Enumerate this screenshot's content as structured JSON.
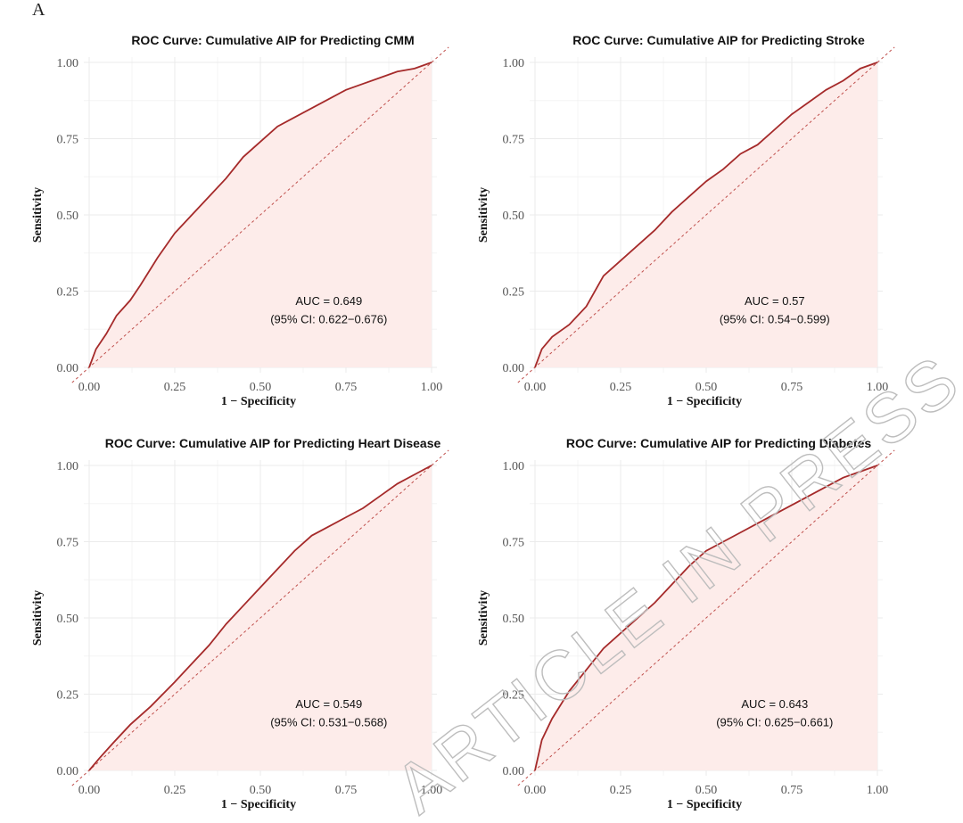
{
  "figure_label": "A",
  "watermark": "ARTICLE IN PRESS",
  "chart_data": [
    {
      "type": "line",
      "title": "ROC Curve: Cumulative AIP for Predicting CMM",
      "xlabel": "1 − Specificity",
      "ylabel": "Sensitivity",
      "xlim": [
        0,
        1
      ],
      "ylim": [
        0,
        1
      ],
      "xticks": [
        "0.00",
        "0.25",
        "0.50",
        "0.75",
        "1.00"
      ],
      "yticks": [
        "0.00",
        "0.25",
        "0.50",
        "0.75",
        "1.00"
      ],
      "grid": true,
      "auc_text": "AUC = 0.649",
      "ci_text": "(95% CI: 0.622−0.676)",
      "x": [
        0,
        0.02,
        0.05,
        0.08,
        0.12,
        0.15,
        0.2,
        0.25,
        0.3,
        0.35,
        0.4,
        0.45,
        0.5,
        0.55,
        0.6,
        0.65,
        0.7,
        0.75,
        0.8,
        0.85,
        0.9,
        0.95,
        1.0
      ],
      "y": [
        0,
        0.06,
        0.11,
        0.17,
        0.22,
        0.27,
        0.36,
        0.44,
        0.5,
        0.56,
        0.62,
        0.69,
        0.74,
        0.79,
        0.82,
        0.85,
        0.88,
        0.91,
        0.93,
        0.95,
        0.97,
        0.98,
        1.0
      ]
    },
    {
      "type": "line",
      "title": "ROC Curve: Cumulative AIP for Predicting Stroke",
      "xlabel": "1 − Specificity",
      "ylabel": "Sensitivity",
      "xlim": [
        0,
        1
      ],
      "ylim": [
        0,
        1
      ],
      "xticks": [
        "0.00",
        "0.25",
        "0.50",
        "0.75",
        "1.00"
      ],
      "yticks": [
        "0.00",
        "0.25",
        "0.50",
        "0.75",
        "1.00"
      ],
      "grid": true,
      "auc_text": "AUC = 0.57",
      "ci_text": "(95% CI: 0.54−0.599)",
      "x": [
        0,
        0.02,
        0.05,
        0.1,
        0.15,
        0.2,
        0.25,
        0.3,
        0.35,
        0.4,
        0.45,
        0.5,
        0.55,
        0.6,
        0.65,
        0.7,
        0.75,
        0.8,
        0.85,
        0.9,
        0.95,
        1.0
      ],
      "y": [
        0,
        0.06,
        0.1,
        0.14,
        0.2,
        0.3,
        0.35,
        0.4,
        0.45,
        0.51,
        0.56,
        0.61,
        0.65,
        0.7,
        0.73,
        0.78,
        0.83,
        0.87,
        0.91,
        0.94,
        0.98,
        1.0
      ]
    },
    {
      "type": "line",
      "title": "ROC Curve: Cumulative AIP for Predicting Heart Disease",
      "xlabel": "1 − Specificity",
      "ylabel": "Sensitivity",
      "xlim": [
        0,
        1
      ],
      "ylim": [
        0,
        1
      ],
      "xticks": [
        "0.00",
        "0.25",
        "0.50",
        "0.75",
        "1.00"
      ],
      "yticks": [
        "0.00",
        "0.25",
        "0.50",
        "0.75",
        "1.00"
      ],
      "grid": true,
      "auc_text": "AUC = 0.549",
      "ci_text": "(95% CI: 0.531−0.568)",
      "x": [
        0,
        0.03,
        0.07,
        0.12,
        0.18,
        0.25,
        0.3,
        0.35,
        0.4,
        0.45,
        0.5,
        0.55,
        0.6,
        0.65,
        0.7,
        0.75,
        0.8,
        0.85,
        0.9,
        0.95,
        1.0
      ],
      "y": [
        0,
        0.04,
        0.09,
        0.15,
        0.21,
        0.29,
        0.35,
        0.41,
        0.48,
        0.54,
        0.6,
        0.66,
        0.72,
        0.77,
        0.8,
        0.83,
        0.86,
        0.9,
        0.94,
        0.97,
        1.0
      ]
    },
    {
      "type": "line",
      "title": "ROC Curve: Cumulative AIP for Predicting Diabetes",
      "xlabel": "1 − Specificity",
      "ylabel": "Sensitivity",
      "xlim": [
        0,
        1
      ],
      "ylim": [
        0,
        1
      ],
      "xticks": [
        "0.00",
        "0.25",
        "0.50",
        "0.75",
        "1.00"
      ],
      "yticks": [
        "0.00",
        "0.25",
        "0.50",
        "0.75",
        "1.00"
      ],
      "grid": true,
      "auc_text": "AUC = 0.643",
      "ci_text": "(95% CI: 0.625−0.661)",
      "x": [
        0,
        0.02,
        0.05,
        0.1,
        0.15,
        0.2,
        0.25,
        0.3,
        0.35,
        0.4,
        0.45,
        0.5,
        0.55,
        0.6,
        0.65,
        0.7,
        0.75,
        0.8,
        0.85,
        0.9,
        0.95,
        1.0
      ],
      "y": [
        0,
        0.1,
        0.17,
        0.26,
        0.33,
        0.4,
        0.45,
        0.5,
        0.55,
        0.61,
        0.67,
        0.72,
        0.75,
        0.78,
        0.81,
        0.84,
        0.87,
        0.9,
        0.93,
        0.96,
        0.98,
        1.0
      ]
    }
  ]
}
